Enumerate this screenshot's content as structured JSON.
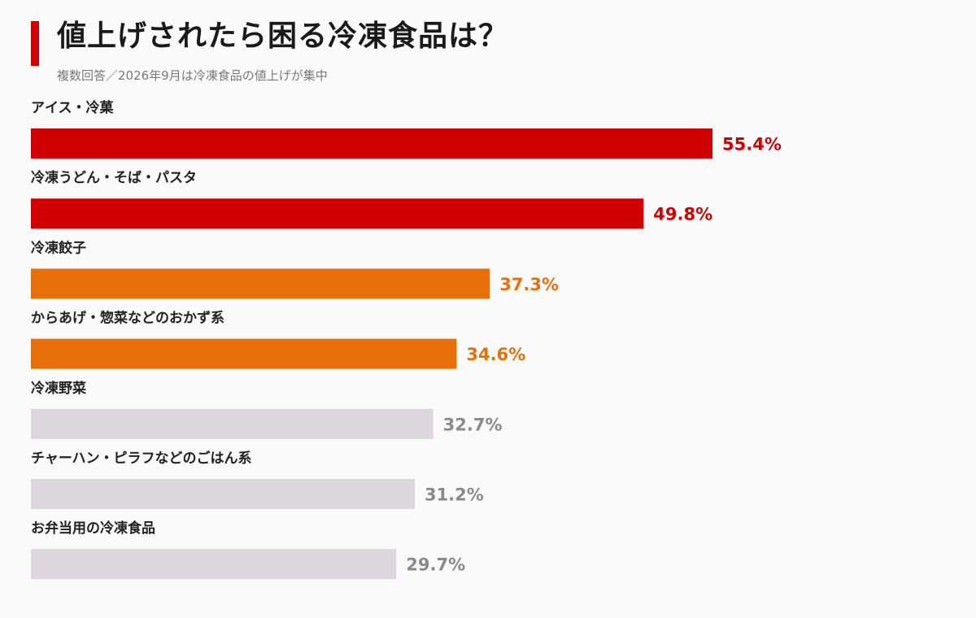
{
  "title": "値上げされたら困る冷凍食品は？",
  "subtitle": "複数回答／2026年9月は冷凍食品の値上げが集中",
  "colors": {
    "accent": "#d10000",
    "top": "#d10000",
    "mid": "#e8700a",
    "rest_bar": "#dcd6dd",
    "rest_text": "#8a8a8a"
  },
  "chart_data": {
    "type": "bar",
    "orientation": "horizontal",
    "categories": [
      "アイス・冷菓",
      "冷凍うどん・そば・パスタ",
      "冷凍餃子",
      "からあげ・惣菜などのおかず系",
      "冷凍野菜",
      "チャーハン・ピラフなどのごはん系",
      "お弁当用の冷凍食品"
    ],
    "values": [
      55.4,
      49.8,
      37.3,
      34.6,
      32.7,
      31.2,
      29.7
    ],
    "value_labels": [
      "55.4%",
      "49.8%",
      "37.3%",
      "34.6%",
      "32.7%",
      "31.2%",
      "29.7%"
    ],
    "color_groups": [
      "top",
      "top",
      "mid",
      "mid",
      "rest",
      "rest",
      "rest"
    ],
    "unit": "%",
    "xlim": [
      0,
      55.4
    ],
    "grid": false,
    "legend": "none"
  }
}
